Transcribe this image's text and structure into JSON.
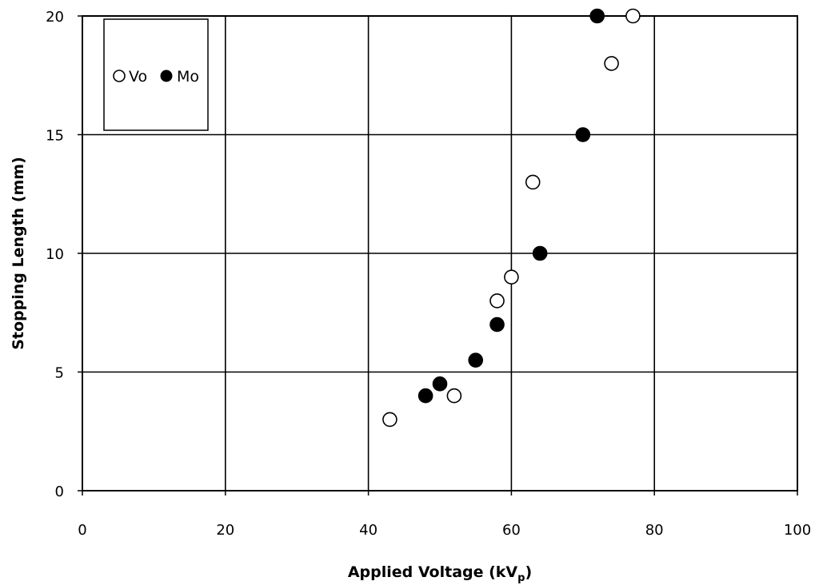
{
  "chart_data": {
    "type": "scatter",
    "title": "",
    "xlabel": "Applied Voltage (kV",
    "xlabel_sub": "p",
    "xlabel_close": ")",
    "ylabel": "Stopping Length (mm)",
    "xlim": [
      0,
      100
    ],
    "ylim": [
      0,
      20
    ],
    "xticks": [
      0,
      20,
      40,
      60,
      80,
      100
    ],
    "yticks": [
      0,
      5,
      10,
      15,
      20
    ],
    "grid": true,
    "legend_position": "top-left",
    "series": [
      {
        "name": "Vo",
        "marker": "open-circle",
        "color": "#000000",
        "points": [
          [
            43,
            3
          ],
          [
            52,
            4
          ],
          [
            58,
            8
          ],
          [
            60,
            9
          ],
          [
            63,
            13
          ],
          [
            74,
            18
          ],
          [
            77,
            20
          ]
        ]
      },
      {
        "name": "Mo",
        "marker": "filled-circle",
        "color": "#000000",
        "points": [
          [
            48,
            4
          ],
          [
            50,
            4.5
          ],
          [
            55,
            5.5
          ],
          [
            58,
            7
          ],
          [
            64,
            10
          ],
          [
            70,
            15
          ],
          [
            72,
            20
          ]
        ]
      }
    ]
  }
}
